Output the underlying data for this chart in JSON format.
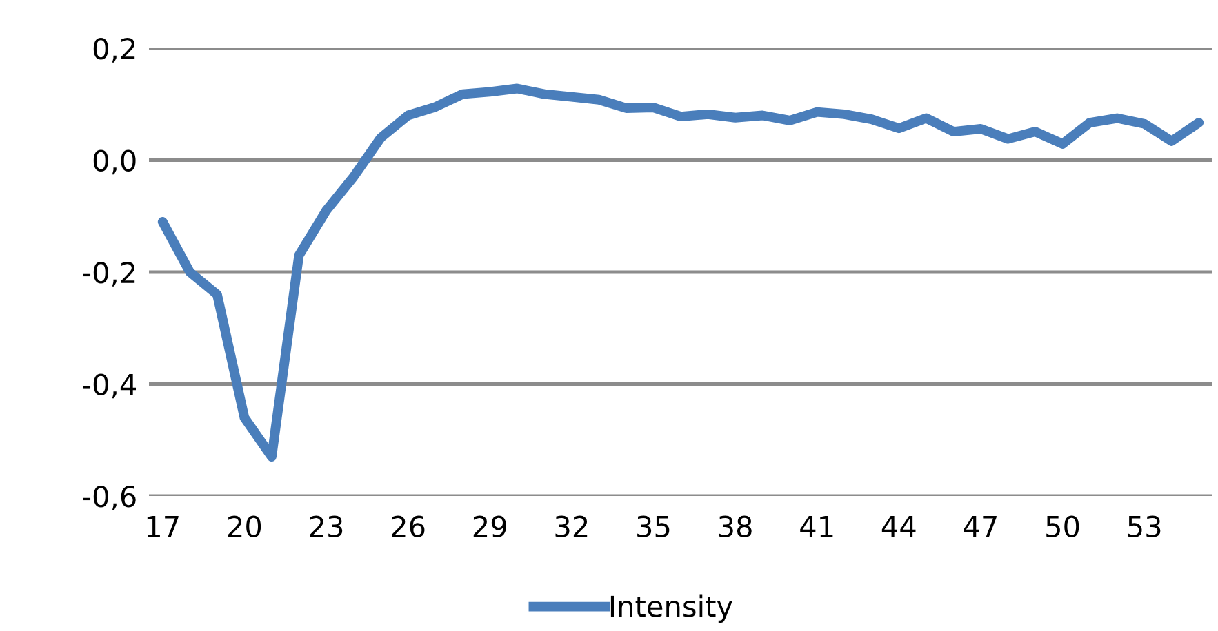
{
  "chart_data": {
    "type": "line",
    "categories": [
      "17",
      null,
      null,
      "20",
      null,
      null,
      "23",
      null,
      null,
      "26",
      null,
      null,
      "29",
      null,
      null,
      "32",
      null,
      null,
      "35",
      null,
      null,
      "38",
      null,
      null,
      "41",
      null,
      null,
      "44",
      null,
      null,
      "47",
      null,
      null,
      "50",
      null,
      null,
      "53",
      null,
      null
    ],
    "series": [
      {
        "name": "Intensity",
        "color": "#4a7ebb",
        "values": [
          -0.11,
          -0.2,
          -0.24,
          -0.46,
          -0.53,
          -0.17,
          -0.09,
          -0.03,
          0.04,
          0.08,
          0.095,
          0.118,
          0.122,
          0.128,
          0.118,
          0.113,
          0.108,
          0.093,
          0.094,
          0.078,
          0.082,
          0.076,
          0.08,
          0.071,
          0.086,
          0.082,
          0.073,
          0.057,
          0.075,
          0.051,
          0.056,
          0.038,
          0.051,
          0.029,
          0.067,
          0.075,
          0.065,
          0.034,
          0.067
        ]
      }
    ],
    "ylim": [
      -0.6,
      0.2
    ],
    "yticks": [
      {
        "value": -0.6,
        "label": "-0,6"
      },
      {
        "value": -0.4,
        "label": "-0,4"
      },
      {
        "value": -0.2,
        "label": "-0,2"
      },
      {
        "value": 0.0,
        "label": "0,0"
      },
      {
        "value": 0.2,
        "label": "0,2"
      }
    ],
    "grid": "y",
    "legend": "bottom",
    "marker": "none",
    "line_style": "solid"
  }
}
